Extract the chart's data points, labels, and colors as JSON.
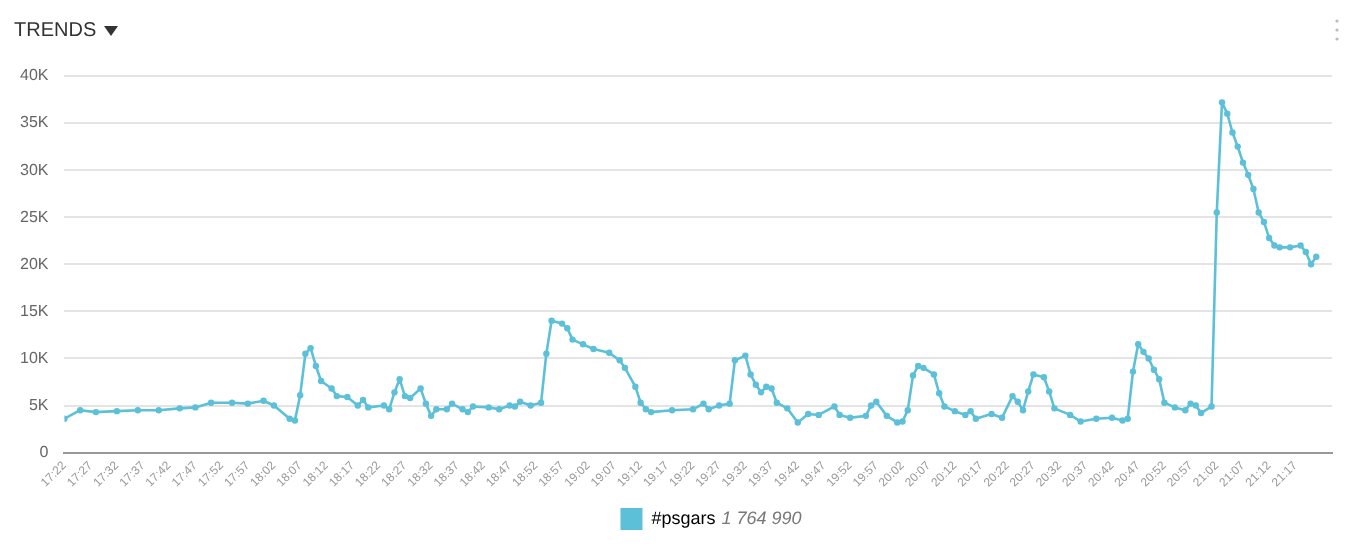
{
  "chart_data": {
    "type": "line",
    "title": "TRENDS",
    "annotations": [
      "1 764 990"
    ],
    "series": [
      {
        "name": "#psgars",
        "color": "#5bc0d8",
        "x": [
          17.3667,
          17.4167,
          17.4667,
          17.5333,
          17.6,
          17.6667,
          17.7333,
          17.7833,
          17.8333,
          17.9,
          17.95,
          18,
          18.0333,
          18.0833,
          18.1,
          18.1167,
          18.1333,
          18.15,
          18.1667,
          18.1833,
          18.2167,
          18.2333,
          18.2667,
          18.3,
          18.3167,
          18.3333,
          18.3833,
          18.4,
          18.4167,
          18.4333,
          18.45,
          18.4667,
          18.5,
          18.5167,
          18.5333,
          18.55,
          18.5833,
          18.6,
          18.6333,
          18.65,
          18.6667,
          18.7167,
          18.75,
          18.7833,
          18.8,
          18.8167,
          18.85,
          18.8833,
          18.9,
          18.9167,
          18.95,
          18.9667,
          18.9833,
          19.0167,
          19.05,
          19.1,
          19.1333,
          19.15,
          19.1833,
          19.2,
          19.2167,
          19.2333,
          19.3,
          19.3667,
          19.4,
          19.4167,
          19.45,
          19.4833,
          19.5,
          19.5333,
          19.55,
          19.5667,
          19.5833,
          19.6,
          19.6167,
          19.6333,
          19.6667,
          19.7,
          19.7333,
          19.7667,
          19.8167,
          19.8333,
          19.8667,
          19.9167,
          19.9333,
          19.95,
          19.9833,
          20.0167,
          20.0333,
          20.05,
          20.0667,
          20.0833,
          20.1,
          20.1333,
          20.15,
          20.1667,
          20.2,
          20.2333,
          20.25,
          20.2667,
          20.3167,
          20.35,
          20.3833,
          20.4,
          20.4167,
          20.4333,
          20.45,
          20.4833,
          20.5,
          20.5167,
          20.5667,
          20.6,
          20.65,
          20.7,
          20.7333,
          20.75,
          20.7667,
          20.7833,
          20.8,
          20.8167,
          20.8333,
          20.85,
          20.8667,
          20.9,
          20.9333,
          20.95,
          20.9667,
          20.9833,
          21.0167,
          21.0333,
          21.05,
          21.0667,
          21.0833,
          21.1,
          21.1167,
          21.1333,
          21.15,
          21.1667,
          21.1833,
          21.2,
          21.2167,
          21.2333,
          21.2667,
          21.3,
          21.3167,
          21.3333,
          21.35
        ],
        "values": [
          3600,
          4500,
          4300,
          4400,
          4500,
          4500,
          4700,
          4800,
          5300,
          5300,
          5200,
          5500,
          5000,
          3600,
          3400,
          6100,
          10500,
          11100,
          9200,
          7600,
          6800,
          6000,
          5900,
          5000,
          5600,
          4800,
          5000,
          4600,
          6400,
          7800,
          6000,
          5800,
          6800,
          5200,
          3900,
          4600,
          4600,
          5200,
          4600,
          4300,
          4900,
          4800,
          4600,
          5000,
          4900,
          5400,
          5000,
          5300,
          10500,
          14000,
          13700,
          13200,
          12000,
          11500,
          11000,
          10600,
          9800,
          9000,
          7000,
          5300,
          4600,
          4300,
          4500,
          4600,
          5200,
          4600,
          5000,
          5200,
          9800,
          10300,
          8300,
          7200,
          6400,
          7000,
          6800,
          5300,
          4700,
          3200,
          4100,
          4000,
          4900,
          4000,
          3700,
          3900,
          5000,
          5400,
          3900,
          3200,
          3300,
          4500,
          8200,
          9200,
          9000,
          8300,
          6300,
          4900,
          4400,
          4000,
          4400,
          3600,
          4100,
          3700,
          6000,
          5400,
          4500,
          6500,
          8300,
          8000,
          6500,
          4700,
          4000,
          3300,
          3600,
          3700,
          3400,
          3600,
          8600,
          11500,
          10700,
          10000,
          8800,
          7800,
          5300,
          4800,
          4500,
          5200,
          5000,
          4200,
          4900,
          25500,
          37200,
          36000,
          34000,
          32500,
          30800,
          29500,
          28000,
          25500,
          24500,
          22800,
          22000,
          21800,
          21800,
          22000,
          21300,
          20000,
          20800
        ]
      }
    ],
    "xlim": [
      17.3667,
      21.4
    ],
    "xticks": [
      {
        "value": 17.3667,
        "label": "17:22"
      },
      {
        "value": 17.45,
        "label": "17:27"
      },
      {
        "value": 17.5333,
        "label": "17:32"
      },
      {
        "value": 17.6167,
        "label": "17:37"
      },
      {
        "value": 17.7,
        "label": "17:42"
      },
      {
        "value": 17.7833,
        "label": "17:47"
      },
      {
        "value": 17.8667,
        "label": "17:52"
      },
      {
        "value": 17.95,
        "label": "17:57"
      },
      {
        "value": 18.0333,
        "label": "18:02"
      },
      {
        "value": 18.1167,
        "label": "18:07"
      },
      {
        "value": 18.2,
        "label": "18:12"
      },
      {
        "value": 18.2833,
        "label": "18:17"
      },
      {
        "value": 18.3667,
        "label": "18:22"
      },
      {
        "value": 18.45,
        "label": "18:27"
      },
      {
        "value": 18.5333,
        "label": "18:32"
      },
      {
        "value": 18.6167,
        "label": "18:37"
      },
      {
        "value": 18.7,
        "label": "18:42"
      },
      {
        "value": 18.7833,
        "label": "18:47"
      },
      {
        "value": 18.8667,
        "label": "18:52"
      },
      {
        "value": 18.95,
        "label": "18:57"
      },
      {
        "value": 19.0333,
        "label": "19:02"
      },
      {
        "value": 19.1167,
        "label": "19:07"
      },
      {
        "value": 19.2,
        "label": "19:12"
      },
      {
        "value": 19.2833,
        "label": "19:17"
      },
      {
        "value": 19.3667,
        "label": "19:22"
      },
      {
        "value": 19.45,
        "label": "19:27"
      },
      {
        "value": 19.5333,
        "label": "19:32"
      },
      {
        "value": 19.6167,
        "label": "19:37"
      },
      {
        "value": 19.7,
        "label": "19:42"
      },
      {
        "value": 19.7833,
        "label": "19:47"
      },
      {
        "value": 19.8667,
        "label": "19:52"
      },
      {
        "value": 19.95,
        "label": "19:57"
      },
      {
        "value": 20.0333,
        "label": "20:02"
      },
      {
        "value": 20.1167,
        "label": "20:07"
      },
      {
        "value": 20.2,
        "label": "20:12"
      },
      {
        "value": 20.2833,
        "label": "20:17"
      },
      {
        "value": 20.3667,
        "label": "20:22"
      },
      {
        "value": 20.45,
        "label": "20:27"
      },
      {
        "value": 20.5333,
        "label": "20:32"
      },
      {
        "value": 20.6167,
        "label": "20:37"
      },
      {
        "value": 20.7,
        "label": "20:42"
      },
      {
        "value": 20.7833,
        "label": "20:47"
      },
      {
        "value": 20.8667,
        "label": "20:52"
      },
      {
        "value": 20.95,
        "label": "20:57"
      },
      {
        "value": 21.0333,
        "label": "21:02"
      },
      {
        "value": 21.1167,
        "label": "21:07"
      },
      {
        "value": 21.2,
        "label": "21:12"
      },
      {
        "value": 21.2833,
        "label": "21:17"
      }
    ],
    "ylim": [
      0,
      40000
    ],
    "yticks": [
      0,
      {
        "value": 5000,
        "label": "5K"
      },
      {
        "value": 10000,
        "label": "10K"
      },
      {
        "value": 15000,
        "label": "15K"
      },
      {
        "value": 20000,
        "label": "20K"
      },
      {
        "value": 25000,
        "label": "25K"
      },
      {
        "value": 30000,
        "label": "30K"
      },
      {
        "value": 35000,
        "label": "35K"
      },
      {
        "value": 40000,
        "label": "40K"
      }
    ],
    "grid": "y",
    "legend": "bottom",
    "marker": "circle",
    "line_style": "solid"
  }
}
